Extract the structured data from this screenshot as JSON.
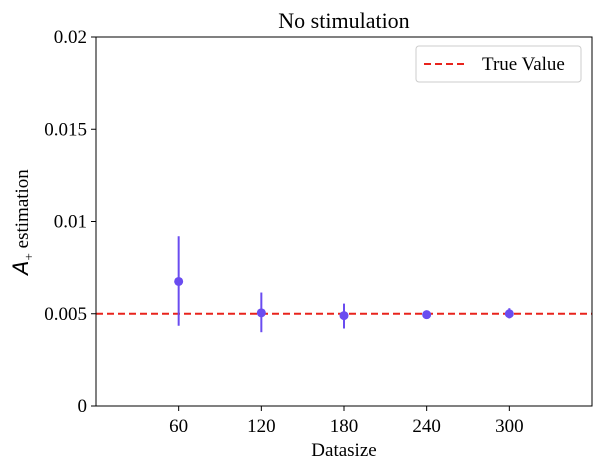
{
  "chart_data": {
    "type": "scatter",
    "title": "No stimulation",
    "xlabel": "Datasize",
    "ylabel_main": "A",
    "ylabel_sub": "+",
    "ylabel_rest": " estimation",
    "x_ticks": [
      "60",
      "120",
      "180",
      "240",
      "300"
    ],
    "y_ticks": [
      "0",
      "0.005",
      "0.01",
      "0.015",
      "0.02"
    ],
    "y_tick_values": [
      0,
      0.005,
      0.01,
      0.015,
      0.02
    ],
    "xlim": [
      0,
      360
    ],
    "ylim": [
      0,
      0.02
    ],
    "true_value": 0.005,
    "legend": {
      "label": "True Value",
      "placement": "top-right"
    },
    "series": [
      {
        "points": [
          {
            "x": 60,
            "y": 0.00675,
            "err_low": 0.00435,
            "err_high": 0.0092
          },
          {
            "x": 120,
            "y": 0.00505,
            "err_low": 0.004,
            "err_high": 0.00615
          },
          {
            "x": 180,
            "y": 0.0049,
            "err_low": 0.0042,
            "err_high": 0.00555
          },
          {
            "x": 240,
            "y": 0.00495,
            "err_low": 0.00475,
            "err_high": 0.00515
          },
          {
            "x": 300,
            "y": 0.005,
            "err_low": 0.00475,
            "err_high": 0.0053
          }
        ]
      }
    ],
    "colors": {
      "points": "#6a4cf0",
      "true_value_line": "#e8231c",
      "axes": "#000000"
    }
  }
}
